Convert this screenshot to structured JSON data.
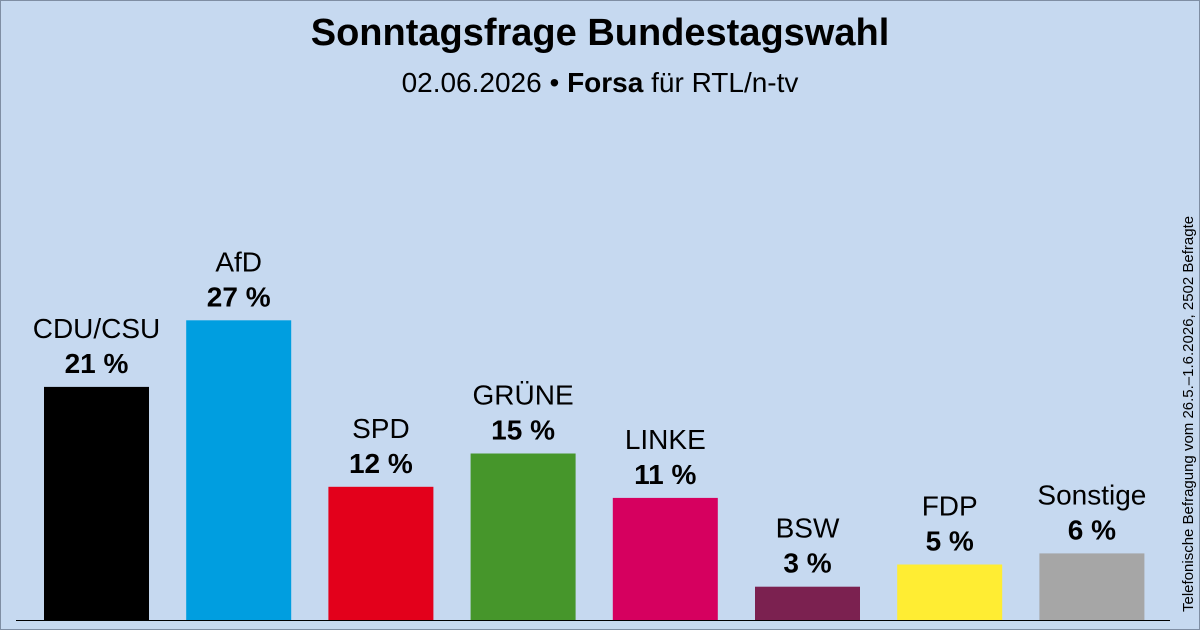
{
  "header": {
    "title": "Sonntagsfrage Bundestagswahl",
    "subtitle_date": "02.06.2026",
    "subtitle_separator": " • ",
    "subtitle_pollster": "Forsa",
    "subtitle_client": " für RTL/n-tv"
  },
  "side_note": "Telefonische Befragung vom 26.5.–1.6.2026, 2502 Befragte",
  "chart_data": {
    "type": "bar",
    "title": "Sonntagsfrage Bundestagswahl",
    "categories": [
      "CDU/CSU",
      "AfD",
      "SPD",
      "GRÜNE",
      "LINKE",
      "BSW",
      "FDP",
      "Sonstige"
    ],
    "values": [
      21,
      27,
      12,
      15,
      11,
      3,
      5,
      6
    ],
    "value_labels": [
      "21 %",
      "27 %",
      "12 %",
      "15 %",
      "11 %",
      "3 %",
      "5 %",
      "6 %"
    ],
    "colors": [
      "#000000",
      "#009ee0",
      "#e3001b",
      "#46962b",
      "#d6005f",
      "#7b2150",
      "#ffed33",
      "#a6a6a6"
    ],
    "unit": "%",
    "grid": false,
    "legend": "none"
  }
}
